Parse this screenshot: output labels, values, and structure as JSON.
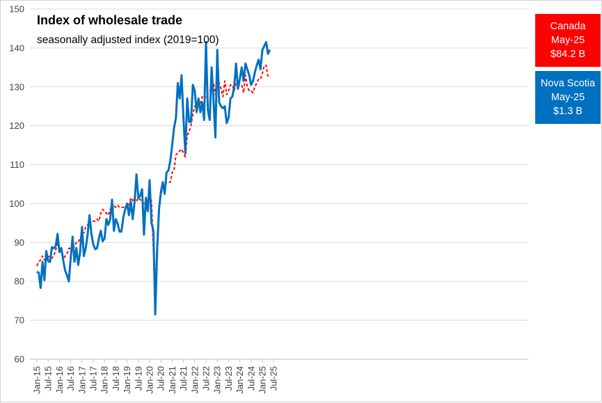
{
  "title": "Index of wholesale trade",
  "subtitle": "seasonally adjusted index (2019=100)",
  "legend": {
    "canada": {
      "name": "Canada",
      "period": "May-25",
      "value": "$84.2 B",
      "color": "#ff0000"
    },
    "nova_scotia": {
      "name": "Nova Scotia",
      "period": "May-25",
      "value": "$1.3 B",
      "color": "#0070c0"
    }
  },
  "chart_data": {
    "type": "line",
    "ylim": [
      60,
      150
    ],
    "yticks": [
      60,
      70,
      80,
      90,
      100,
      110,
      120,
      130,
      140,
      150
    ],
    "x_start": "Jan-15",
    "x_tick_labels": [
      "Jan-15",
      "Jul-15",
      "Jan-16",
      "Jul-16",
      "Jan-17",
      "Jul-17",
      "Jan-18",
      "Jul-18",
      "Jan-19",
      "Jul-19",
      "Jan-20",
      "Jul-20",
      "Jan-21",
      "Jul-21",
      "Jan-22",
      "Jul-22",
      "Jan-23",
      "Jul-23",
      "Jan-24",
      "Jul-24",
      "Jan-25",
      "Jul-25"
    ],
    "grid": "horizontal",
    "legend_position": "right",
    "series": [
      {
        "name": "Nova Scotia",
        "color": "#0070c0",
        "style": "solid",
        "values": [
          82.5,
          82.2,
          78.3,
          85.0,
          80.3,
          87.8,
          85.2,
          85.0,
          88.8,
          88.5,
          89.0,
          92.2,
          87.5,
          88.6,
          85.5,
          82.8,
          81.6,
          80.0,
          86.0,
          91.5,
          85.0,
          88.6,
          84.2,
          87.5,
          94.0,
          86.5,
          88.5,
          92.0,
          97.0,
          92.2,
          89.5,
          88.3,
          88.5,
          91.0,
          93.0,
          90.3,
          91.0,
          96.0,
          94.5,
          96.0,
          101.0,
          93.0,
          96.0,
          94.8,
          92.8,
          92.8,
          96.5,
          98.5,
          100.0,
          97.0,
          100.5,
          96.0,
          100.5,
          107.5,
          101.5,
          102.0,
          103.7,
          92.0,
          101.5,
          98.0,
          106.0,
          95.0,
          93.0,
          71.5,
          88.0,
          98.5,
          103.0,
          105.5,
          102.5,
          108.0,
          108.5,
          111.0,
          115.0,
          119.5,
          122.0,
          131.0,
          127.0,
          133.0,
          122.0,
          113.0,
          127.0,
          121.0,
          121.0,
          130.5,
          129.0,
          123.5,
          127.0,
          123.5,
          126.0,
          121.5,
          141.5,
          124.0,
          121.5,
          135.0,
          126.5,
          117.0,
          139.5,
          126.0,
          125.0,
          124.5,
          125.0,
          120.7,
          122.0,
          127.0,
          127.5,
          130.0,
          136.0,
          129.5,
          132.0,
          135.0,
          131.5,
          136.0,
          134.5,
          133.0,
          130.5,
          131.5,
          133.7,
          135.5,
          137.0,
          134.5,
          139.5,
          140.5,
          141.5,
          138.5,
          139.5
        ]
      },
      {
        "name": "Canada",
        "color": "#ff0000",
        "style": "dashed",
        "values": [
          84.0,
          85.0,
          85.5,
          86.5,
          85.5,
          86.0,
          86.3,
          86.5,
          86.0,
          86.5,
          88.0,
          90.0,
          88.5,
          88.0,
          85.5,
          86.5,
          87.0,
          88.5,
          88.5,
          88.5,
          89.0,
          90.0,
          90.0,
          91.0,
          92.5,
          92.5,
          94.0,
          94.5,
          95.5,
          95.0,
          95.5,
          95.5,
          96.0,
          95.5,
          97.5,
          98.5,
          98.0,
          97.5,
          97.0,
          98.5,
          98.0,
          99.5,
          99.0,
          99.5,
          99.0,
          99.0,
          99.0,
          99.5,
          99.0,
          99.5,
          101.5,
          100.8,
          101.5,
          100.5,
          101.5,
          101.0,
          100.5,
          100.0,
          100.5,
          101.0,
          102.5,
          100.5,
          88.0,
          77.5,
          90.0,
          99.5,
          102.5,
          104.0,
          104.5,
          105.5,
          105.5,
          105.5,
          108.0,
          108.5,
          112.5,
          113.0,
          113.5,
          114.0,
          113.0,
          112.0,
          117.5,
          118.5,
          120.0,
          123.0,
          125.0,
          125.5,
          126.0,
          125.5,
          127.5,
          127.0,
          127.5,
          128.5,
          129.0,
          130.0,
          131.0,
          128.0,
          134.5,
          131.0,
          129.5,
          127.5,
          131.5,
          128.0,
          129.0,
          130.5,
          130.5,
          129.0,
          131.0,
          131.0,
          130.5,
          130.5,
          128.5,
          133.0,
          130.0,
          129.0,
          129.0,
          128.5,
          130.0,
          131.0,
          132.0,
          132.0,
          133.5,
          135.5,
          135.5,
          132.5,
          132.5
        ]
      }
    ]
  }
}
